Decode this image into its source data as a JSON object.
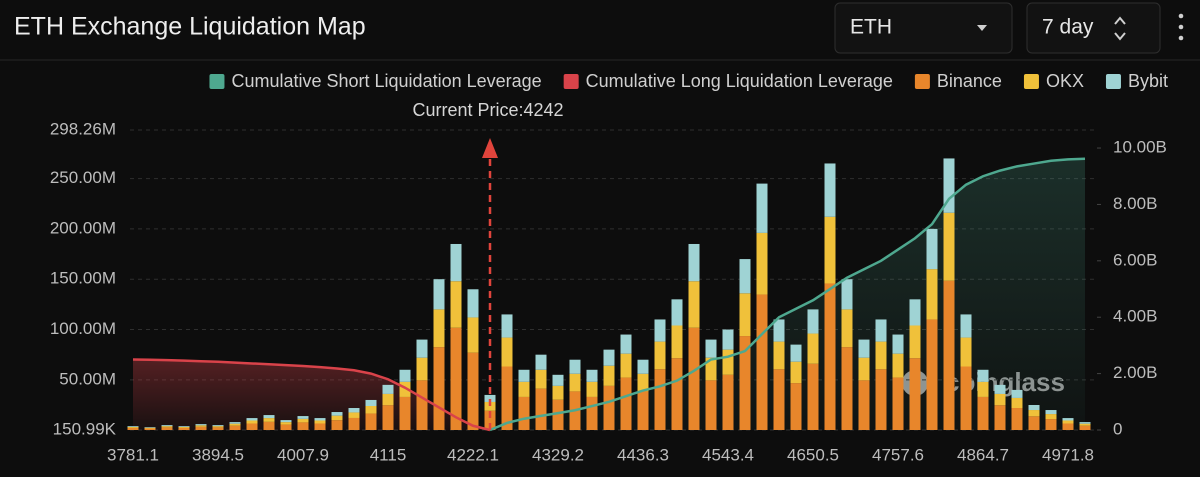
{
  "chart_data": {
    "type": "bar",
    "title": "ETH Exchange Liquidation Map",
    "annotation": "Current Price:4242",
    "watermark": "coinglass",
    "categories": [
      "3781.1",
      null,
      null,
      null,
      null,
      "3894.5",
      null,
      null,
      null,
      null,
      "4007.9",
      null,
      null,
      null,
      null,
      "4115",
      null,
      null,
      null,
      null,
      "4222.1",
      null,
      null,
      null,
      null,
      "4329.2",
      null,
      null,
      null,
      null,
      "4436.3",
      null,
      null,
      null,
      null,
      "4543.4",
      null,
      null,
      null,
      null,
      "4650.5",
      null,
      null,
      null,
      null,
      "4757.6",
      null,
      null,
      null,
      null,
      "4864.7",
      null,
      null,
      null,
      null,
      "4971.8",
      null
    ],
    "series": [
      {
        "name": "Cumulative Short Liquidation Leverage",
        "type": "line",
        "axis": "y2",
        "color": "#4ea88f",
        "values": [
          null,
          null,
          null,
          null,
          null,
          null,
          null,
          null,
          null,
          null,
          null,
          null,
          null,
          null,
          null,
          null,
          null,
          null,
          null,
          null,
          null,
          0,
          250000000.0,
          400000000.0,
          500000000.0,
          600000000.0,
          700000000.0,
          850000000.0,
          1000000000.0,
          1200000000.0,
          1400000000.0,
          1550000000.0,
          1750000000.0,
          2100000000.0,
          2500000000.0,
          2600000000.0,
          2800000000.0,
          3400000000.0,
          4000000000.0,
          4300000000.0,
          4600000000.0,
          5000000000.0,
          5400000000.0,
          5700000000.0,
          6000000000.0,
          6400000000.0,
          6800000000.0,
          7300000000.0,
          8200000000.0,
          8700000000.0,
          9000000000.0,
          9200000000.0,
          9350000000.0,
          9450000000.0,
          9550000000.0,
          9600000000.0,
          9620000000.0
        ]
      },
      {
        "name": "Cumulative Long Liquidation Leverage",
        "type": "line",
        "axis": "y2",
        "color": "#d9434a",
        "values": [
          2500000000.0,
          2490000000.0,
          2480000000.0,
          2460000000.0,
          2440000000.0,
          2420000000.0,
          2390000000.0,
          2360000000.0,
          2330000000.0,
          2300000000.0,
          2270000000.0,
          2230000000.0,
          2180000000.0,
          2120000000.0,
          2000000000.0,
          1800000000.0,
          1500000000.0,
          1150000000.0,
          800000000.0,
          450000000.0,
          150000000.0,
          0,
          null,
          null,
          null,
          null,
          null,
          null,
          null,
          null,
          null,
          null,
          null,
          null,
          null,
          null,
          null,
          null,
          null,
          null,
          null,
          null,
          null,
          null,
          null,
          null,
          null,
          null,
          null,
          null,
          null,
          null,
          null,
          null,
          null,
          null,
          null
        ]
      },
      {
        "name": "Binance",
        "type": "bar",
        "color": "#e8862b",
        "values": [
          2200000.0,
          1650000.0,
          2750000.0,
          2200000.0,
          3300000.0,
          2750000.0,
          4400000.0,
          6600000.0,
          8250000.0,
          5500000.0,
          7700000.0,
          6600000.0,
          9900000.0,
          12100000.0,
          16500000.0,
          24750000.0,
          33000000.0,
          49500000.0,
          82500000.0,
          101750000.0,
          77000000.0,
          19250000.0,
          63250000.0,
          33000000.0,
          41250000.0,
          30250000.0,
          38500000.0,
          33000000.0,
          44000000.0,
          52250000.0,
          38500000.0,
          60500000.0,
          71500000.0,
          101750000.0,
          49500000.0,
          55000000.0,
          93500000.0,
          134750000.0,
          60500000.0,
          46750000.0,
          66000000.0,
          145750000.0,
          82500000.0,
          49500000.0,
          60500000.0,
          52250000.0,
          71500000.0,
          110000000.0,
          148500000.0,
          63250000.0,
          33000000.0,
          24750000.0,
          22000000.0,
          13750000.0,
          11000000.0,
          6600000.0,
          4400000.0
        ]
      },
      {
        "name": "OKX",
        "type": "bar",
        "color": "#f0c13a",
        "values": [
          1000000.0,
          750000.0,
          1250000.0,
          1000000.0,
          1500000.0,
          1250000.0,
          2000000.0,
          3000000.0,
          3750000.0,
          2500000.0,
          3500000.0,
          3000000.0,
          4500000.0,
          5500000.0,
          7500000.0,
          11250000.0,
          15000000.0,
          22500000.0,
          37500000.0,
          46250000.0,
          35000000.0,
          8750000.0,
          28750000.0,
          15000000.0,
          18750000.0,
          13750000.0,
          17500000.0,
          15000000.0,
          20000000.0,
          23750000.0,
          17500000.0,
          27500000.0,
          32500000.0,
          46250000.0,
          22500000.0,
          25000000.0,
          42500000.0,
          61250000.0,
          27500000.0,
          21250000.0,
          30000000.0,
          66250000.0,
          37500000.0,
          22500000.0,
          27500000.0,
          23750000.0,
          32500000.0,
          50000000.0,
          67500000.0,
          28750000.0,
          15000000.0,
          11250000.0,
          10000000.0,
          6250000.0,
          5000000.0,
          3000000.0,
          2000000.0
        ]
      },
      {
        "name": "Bybit",
        "type": "bar",
        "color": "#9fd3d4",
        "values": [
          800000.0,
          600000.0,
          1000000.0,
          800000.0,
          1200000.0,
          1000000.0,
          1600000.0,
          2400000.0,
          3000000.0,
          2000000.0,
          2800000.0,
          2400000.0,
          3600000.0,
          4400000.0,
          6000000.0,
          9000000.0,
          12000000.0,
          18000000.0,
          30000000.0,
          37000000.0,
          28000000.0,
          7000000.0,
          23000000.0,
          12000000.0,
          15000000.0,
          11000000.0,
          14000000.0,
          12000000.0,
          16000000.0,
          19000000.0,
          14000000.0,
          22000000.0,
          26000000.0,
          37000000.0,
          18000000.0,
          20000000.0,
          34000000.0,
          49000000.0,
          22000000.0,
          17000000.0,
          24000000.0,
          53000000.0,
          30000000.0,
          18000000.0,
          22000000.0,
          19000000.0,
          26000000.0,
          40000000.0,
          54000000.0,
          23000000.0,
          12000000.0,
          9000000.0,
          8000000.0,
          5000000.0,
          4000000.0,
          2400000.0,
          1600000.0
        ]
      }
    ],
    "ylim": [
      150990,
      298260000
    ],
    "yticks": [
      {
        "value": 150990,
        "label": "150.99K"
      },
      {
        "value": 50000000,
        "label": "50.00M"
      },
      {
        "value": 100000000,
        "label": "100.00M"
      },
      {
        "value": 150000000,
        "label": "150.00M"
      },
      {
        "value": 200000000,
        "label": "200.00M"
      },
      {
        "value": 250000000,
        "label": "250.00M"
      },
      {
        "value": 298260000,
        "label": "298.26M"
      }
    ],
    "y2lim": [
      0,
      10640000000
    ],
    "y2ticks": [
      0,
      {
        "value": 2000000000,
        "label": "2.00B"
      },
      {
        "value": 4000000000,
        "label": "4.00B"
      },
      {
        "value": 6000000000,
        "label": "6.00B"
      },
      {
        "value": 8000000000,
        "label": "8.00B"
      },
      {
        "value": 10000000000,
        "label": "10.00B"
      }
    ],
    "grid": true
  },
  "controls": {
    "symbol": "ETH",
    "range": "7 day"
  }
}
